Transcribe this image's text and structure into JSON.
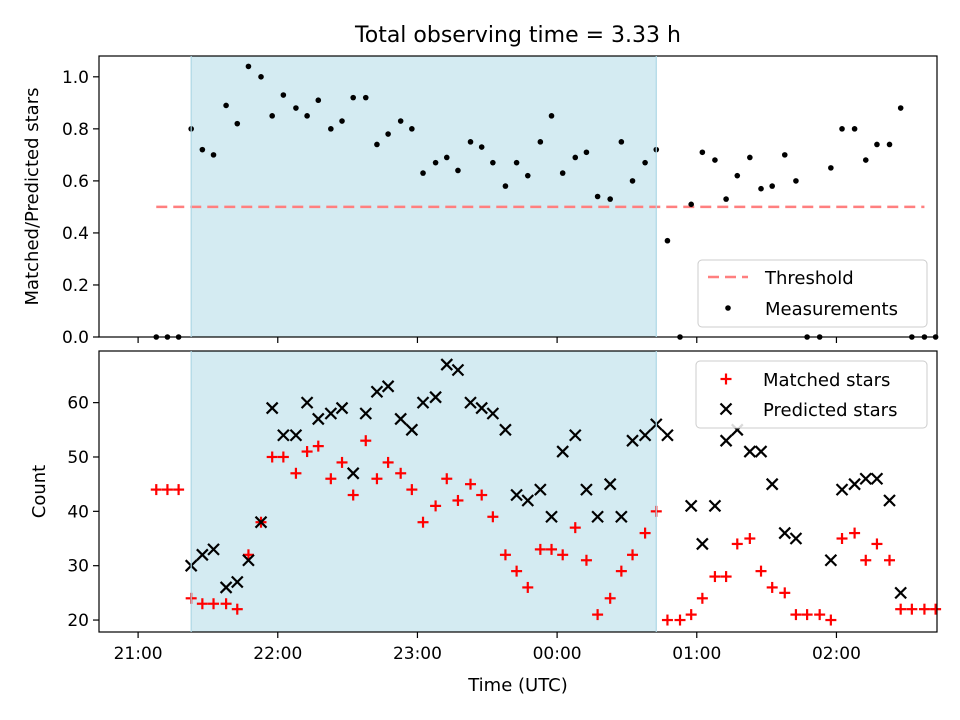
{
  "figure": {
    "title": "Total observing time = 3.33 h",
    "xlabel": "Time (UTC)"
  },
  "colors": {
    "shade": "#add8e6",
    "threshold": "#ff7f7f",
    "matched": "#ff0000",
    "predicted": "#000000",
    "measurement": "#000000"
  },
  "chart_data": [
    {
      "type": "scatter",
      "panel": "top",
      "ylabel": "Matched/Predicted stars",
      "xlim": [
        -0.28,
        5.72
      ],
      "ylim": [
        0,
        1.08
      ],
      "x_unit": "hours since 21:00 UTC",
      "x_tick_labels": [
        "21:00",
        "22:00",
        "23:00",
        "00:00",
        "01:00",
        "02:00"
      ],
      "y_ticks": [
        "0.0",
        "0.2",
        "0.4",
        "0.6",
        "0.8",
        "1.0"
      ],
      "shaded_region": [
        0.38,
        3.71
      ],
      "grid": false,
      "legend_position": "lower right",
      "threshold": {
        "name": "Threshold",
        "y": 0.5,
        "x": [
          0.13,
          5.63
        ]
      },
      "measurements": {
        "name": "Measurements",
        "x": [
          0.13,
          0.21,
          0.29,
          0.38,
          0.46,
          0.54,
          0.63,
          0.71,
          0.79,
          0.88,
          0.96,
          1.04,
          1.13,
          1.21,
          1.29,
          1.38,
          1.46,
          1.54,
          1.63,
          1.71,
          1.79,
          1.88,
          1.96,
          2.04,
          2.13,
          2.21,
          2.29,
          2.38,
          2.46,
          2.54,
          2.63,
          2.71,
          2.79,
          2.88,
          2.96,
          3.04,
          3.13,
          3.21,
          3.29,
          3.38,
          3.46,
          3.54,
          3.63,
          3.71,
          3.79,
          3.88,
          3.96,
          4.04,
          4.13,
          4.21,
          4.29,
          4.38,
          4.46,
          4.54,
          4.63,
          4.71,
          4.79,
          4.88,
          4.96,
          5.04,
          5.13,
          5.21,
          5.29,
          5.38,
          5.46,
          5.54,
          5.63,
          5.71
        ],
        "y": [
          0,
          0,
          0,
          0.8,
          0.72,
          0.7,
          0.89,
          0.82,
          1.04,
          1.0,
          0.85,
          0.93,
          0.88,
          0.85,
          0.91,
          0.8,
          0.83,
          0.92,
          0.92,
          0.74,
          0.78,
          0.83,
          0.8,
          0.63,
          0.67,
          0.69,
          0.64,
          0.75,
          0.73,
          0.67,
          0.58,
          0.67,
          0.62,
          0.75,
          0.85,
          0.63,
          0.69,
          0.71,
          0.54,
          0.53,
          0.75,
          0.6,
          0.67,
          0.72,
          0.37,
          0,
          0.51,
          0.71,
          0.68,
          0.53,
          0.62,
          0.69,
          0.57,
          0.58,
          0.7,
          0.6,
          0,
          0,
          0.65,
          0.8,
          0.8,
          0.68,
          0.74,
          0.74,
          0.88,
          0,
          0,
          0
        ]
      }
    },
    {
      "type": "scatter",
      "panel": "bottom",
      "ylabel": "Count",
      "xlim": [
        -0.28,
        5.72
      ],
      "ylim": [
        17.8,
        69.5
      ],
      "x_unit": "hours since 21:00 UTC",
      "x_tick_labels": [
        "21:00",
        "22:00",
        "23:00",
        "00:00",
        "01:00",
        "02:00"
      ],
      "y_ticks": [
        "20",
        "30",
        "40",
        "50",
        "60"
      ],
      "shaded_region": [
        0.38,
        3.71
      ],
      "grid": false,
      "legend_position": "upper right",
      "series": [
        {
          "name": "Matched stars",
          "marker": "plus",
          "x": [
            0.13,
            0.21,
            0.29,
            0.38,
            0.46,
            0.54,
            0.63,
            0.71,
            0.79,
            0.88,
            0.96,
            1.04,
            1.13,
            1.21,
            1.29,
            1.38,
            1.46,
            1.54,
            1.63,
            1.71,
            1.79,
            1.88,
            1.96,
            2.04,
            2.13,
            2.21,
            2.29,
            2.38,
            2.46,
            2.54,
            2.63,
            2.71,
            2.79,
            2.88,
            2.96,
            3.04,
            3.13,
            3.21,
            3.29,
            3.38,
            3.46,
            3.54,
            3.63,
            3.71,
            3.79,
            3.88,
            3.96,
            4.04,
            4.13,
            4.21,
            4.29,
            4.38,
            4.46,
            4.54,
            4.63,
            4.71,
            4.79,
            4.88,
            4.96,
            5.04,
            5.13,
            5.21,
            5.29,
            5.38,
            5.46,
            5.54,
            5.63,
            5.71
          ],
          "y": [
            44,
            44,
            44,
            24,
            23,
            23,
            23,
            22,
            32,
            38,
            50,
            50,
            47,
            51,
            52,
            46,
            49,
            43,
            53,
            46,
            49,
            47,
            44,
            38,
            41,
            46,
            42,
            45,
            43,
            39,
            32,
            29,
            26,
            33,
            33,
            32,
            37,
            31,
            21,
            24,
            29,
            32,
            36,
            40,
            20,
            20,
            21,
            24,
            28,
            28,
            34,
            35,
            29,
            26,
            25,
            21,
            21,
            21,
            20,
            35,
            36,
            31,
            34,
            31,
            22,
            22,
            22,
            22
          ]
        },
        {
          "name": "Predicted stars",
          "marker": "x",
          "x": [
            0.38,
            0.46,
            0.54,
            0.63,
            0.71,
            0.79,
            0.88,
            0.96,
            1.04,
            1.13,
            1.21,
            1.29,
            1.38,
            1.46,
            1.54,
            1.63,
            1.71,
            1.79,
            1.88,
            1.96,
            2.04,
            2.13,
            2.21,
            2.29,
            2.38,
            2.46,
            2.54,
            2.63,
            2.71,
            2.79,
            2.88,
            2.96,
            3.04,
            3.13,
            3.21,
            3.29,
            3.38,
            3.46,
            3.54,
            3.63,
            3.71,
            3.79,
            3.96,
            4.04,
            4.13,
            4.21,
            4.29,
            4.38,
            4.46,
            4.54,
            4.63,
            4.71,
            4.96,
            5.04,
            5.13,
            5.21,
            5.29,
            5.38,
            5.46
          ],
          "y": [
            30,
            32,
            33,
            26,
            27,
            31,
            38,
            59,
            54,
            54,
            60,
            57,
            58,
            59,
            47,
            58,
            62,
            63,
            57,
            55,
            60,
            61,
            67,
            66,
            60,
            59,
            58,
            55,
            43,
            42,
            44,
            39,
            51,
            54,
            44,
            39,
            45,
            39,
            53,
            54,
            56,
            54,
            41,
            34,
            41,
            53,
            55,
            51,
            51,
            45,
            36,
            35,
            31,
            44,
            45,
            46,
            46,
            42,
            25
          ]
        }
      ]
    }
  ]
}
